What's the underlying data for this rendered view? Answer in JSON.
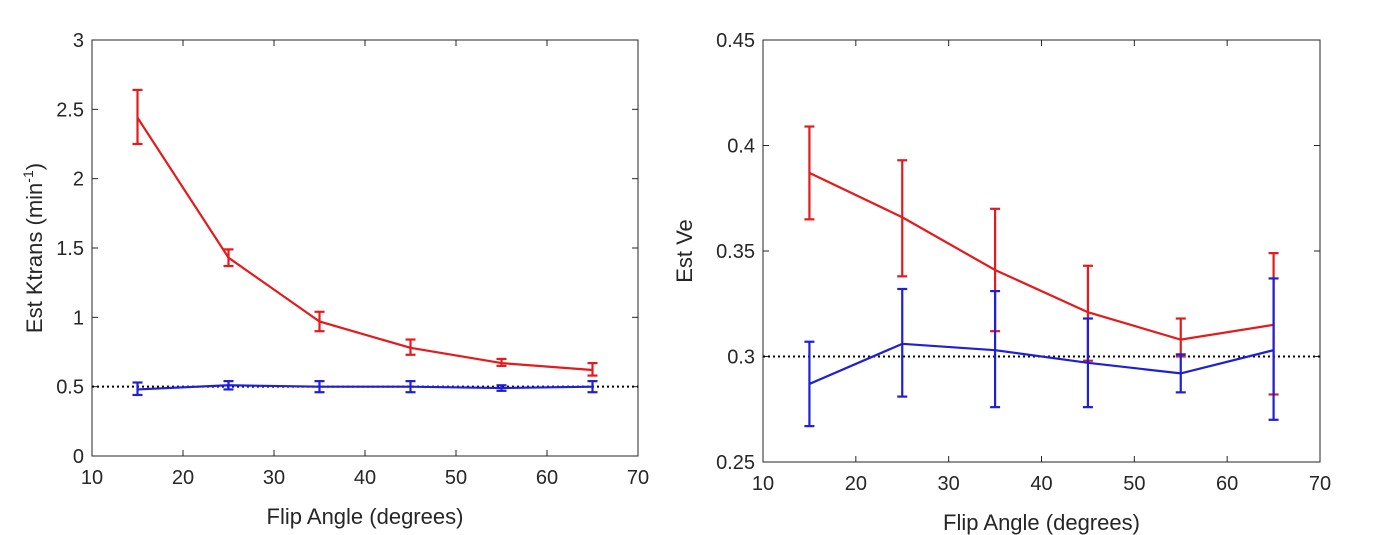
{
  "colors": {
    "red": "#e41a1c",
    "blue": "#1f1fd6",
    "axis": "#262626",
    "ref": "#000000"
  },
  "chart_data": [
    {
      "type": "line",
      "title": "",
      "xlabel": "Flip Angle (degrees)",
      "ylabel_main": "Est Ktrans (min",
      "ylabel_sup": "-1",
      "ylabel_tail": ")",
      "xlim": [
        10,
        70
      ],
      "ylim": [
        0,
        3
      ],
      "xticks": [
        10,
        20,
        30,
        40,
        50,
        60,
        70
      ],
      "yticks": [
        0,
        0.5,
        1,
        1.5,
        2,
        2.5,
        3
      ],
      "xtick_labels": [
        "10",
        "20",
        "30",
        "40",
        "50",
        "60",
        "70"
      ],
      "ytick_labels": [
        "0",
        "0.5",
        "1",
        "1.5",
        "2",
        "2.5",
        "3"
      ],
      "reference_line": {
        "y": 0.5,
        "style": "dotted"
      },
      "x": [
        15,
        25,
        35,
        45,
        55,
        65
      ],
      "series": [
        {
          "name": "red",
          "color": "#e41a1c",
          "values": [
            2.44,
            1.43,
            0.97,
            0.78,
            0.67,
            0.62
          ],
          "err_low": [
            2.25,
            1.37,
            0.9,
            0.73,
            0.65,
            0.58
          ],
          "err_high": [
            2.64,
            1.49,
            1.04,
            0.84,
            0.7,
            0.67
          ]
        },
        {
          "name": "blue",
          "color": "#1f1fd6",
          "values": [
            0.48,
            0.51,
            0.5,
            0.5,
            0.49,
            0.5
          ],
          "err_low": [
            0.44,
            0.48,
            0.46,
            0.46,
            0.47,
            0.46
          ],
          "err_high": [
            0.53,
            0.54,
            0.54,
            0.54,
            0.51,
            0.54
          ]
        }
      ]
    },
    {
      "type": "line",
      "title": "",
      "xlabel": "Flip Angle (degrees)",
      "ylabel_main": "Est Ve",
      "ylabel_sup": "",
      "ylabel_tail": "",
      "xlim": [
        10,
        70
      ],
      "ylim": [
        0.25,
        0.45
      ],
      "xticks": [
        10,
        20,
        30,
        40,
        50,
        60,
        70
      ],
      "yticks": [
        0.25,
        0.3,
        0.35,
        0.4,
        0.45
      ],
      "xtick_labels": [
        "10",
        "20",
        "30",
        "40",
        "50",
        "60",
        "70"
      ],
      "ytick_labels": [
        "0.25",
        "0.3",
        "0.35",
        "0.4",
        "0.45"
      ],
      "reference_line": {
        "y": 0.3,
        "style": "dotted"
      },
      "x": [
        15,
        25,
        35,
        45,
        55,
        65
      ],
      "series": [
        {
          "name": "red",
          "color": "#e41a1c",
          "values": [
            0.387,
            0.366,
            0.341,
            0.321,
            0.308,
            0.315
          ],
          "err_low": [
            0.365,
            0.338,
            0.312,
            0.298,
            0.3,
            0.282
          ],
          "err_high": [
            0.409,
            0.393,
            0.37,
            0.343,
            0.318,
            0.349
          ]
        },
        {
          "name": "blue",
          "color": "#1f1fd6",
          "values": [
            0.287,
            0.306,
            0.303,
            0.297,
            0.292,
            0.303
          ],
          "err_low": [
            0.267,
            0.281,
            0.276,
            0.276,
            0.283,
            0.27
          ],
          "err_high": [
            0.307,
            0.332,
            0.331,
            0.318,
            0.301,
            0.337
          ]
        }
      ]
    }
  ]
}
